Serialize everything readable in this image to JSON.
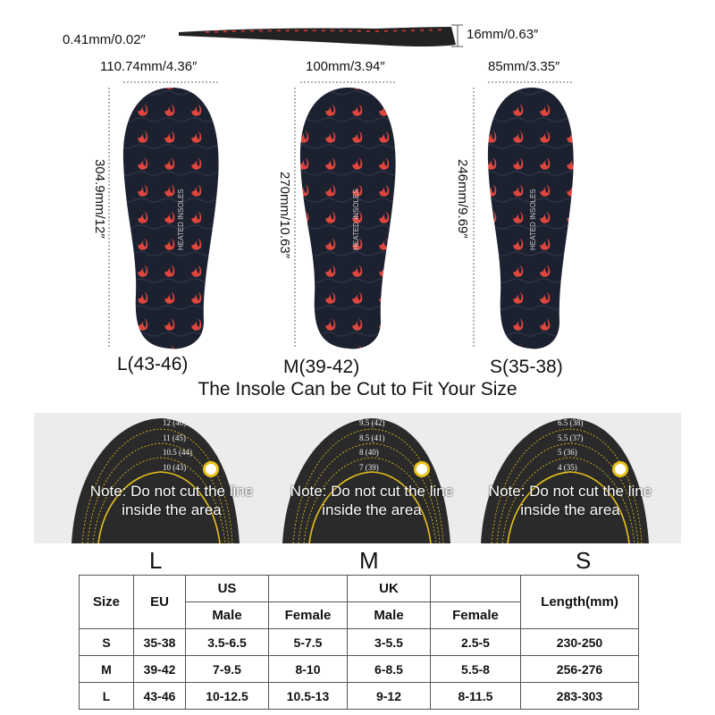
{
  "side_view": {
    "thickness_thin": "0.41mm/0.02″",
    "thickness_thick": "16mm/0.63″"
  },
  "insoles": [
    {
      "size": "L(43-46)",
      "width": "110.74mm/4.36″",
      "length": "304.9mm/12″",
      "print": "HEATED INSOLES"
    },
    {
      "size": "M(39-42)",
      "width": "100mm/3.94″",
      "length": "270mm/10.63″",
      "print": "HEATED INSOLES"
    },
    {
      "size": "S(35-38)",
      "width": "85mm/3.35″",
      "length": "246mm/9.69″",
      "print": "HEATED INSOLES"
    }
  ],
  "caption": "The Insole Can be Cut to Fit Your Size",
  "cut_guides": [
    {
      "letter": "L",
      "lines": [
        "12 (46)",
        "11 (45)",
        "10.5 (44)",
        "10 (43)"
      ],
      "note": "Note: Do not cut the line inside the area"
    },
    {
      "letter": "M",
      "lines": [
        "9.5 (42)",
        "8.5 (41)",
        "8 (40)",
        "7 (39)"
      ],
      "note": "Note: Do not cut the line inside the area"
    },
    {
      "letter": "S",
      "lines": [
        "6.5 (38)",
        "5.5 (37)",
        "5 (36)",
        "4 (35)"
      ],
      "note": "Note: Do not cut the line inside the area"
    }
  ],
  "colors": {
    "insole": "#1c2130",
    "flame": "#e0463e",
    "cut_line": "#e8c21a",
    "band": "#ececec"
  },
  "table": {
    "headers": {
      "size": "Size",
      "eu": "EU",
      "us": "US",
      "uk": "UK",
      "male": "Male",
      "female": "Female",
      "length": "Length(mm)"
    },
    "rows": [
      [
        "S",
        "35-38",
        "3.5-6.5",
        "5-7.5",
        "3-5.5",
        "2.5-5",
        "230-250"
      ],
      [
        "M",
        "39-42",
        "7-9.5",
        "8-10",
        "6-8.5",
        "5.5-8",
        "256-276"
      ],
      [
        "L",
        "43-46",
        "10-12.5",
        "10.5-13",
        "9-12",
        "8-11.5",
        "283-303"
      ]
    ]
  }
}
